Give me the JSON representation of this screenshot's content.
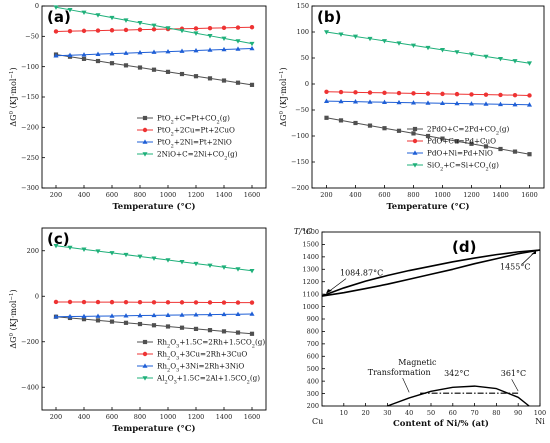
{
  "chart_data": [
    {
      "panel": "(a)",
      "type": "line",
      "xlabel": "Temperature (°C)",
      "ylabel": "ΔG⁰ (KJ·mol⁻¹)",
      "xlim": [
        100,
        1700
      ],
      "ylim": [
        -300,
        0
      ],
      "xticks": [
        200,
        400,
        600,
        800,
        1000,
        1200,
        1400,
        1600
      ],
      "yticks": [
        0,
        -50,
        -100,
        -150,
        -200,
        -250,
        -300
      ],
      "legend_position": "bottom-right",
      "x": [
        200,
        300,
        400,
        500,
        600,
        700,
        800,
        900,
        1000,
        1100,
        1200,
        1300,
        1400,
        1500,
        1600
      ],
      "series": [
        {
          "name": "PtO2+C=Pt+CO2(g)",
          "label_parts": [
            [
              "PtO",
              "n"
            ],
            [
              "2",
              "sub"
            ],
            [
              "+C=Pt+CO",
              "n"
            ],
            [
              "2",
              "sub"
            ],
            [
              "(g)",
              "n"
            ]
          ],
          "color": "#505050",
          "marker": "square",
          "start": -80,
          "end": -130
        },
        {
          "name": "PtO2+2Cu=Pt+2CuO",
          "label_parts": [
            [
              "PtO",
              "n"
            ],
            [
              "2",
              "sub"
            ],
            [
              "+2Cu=Pt+2CuO",
              "n"
            ]
          ],
          "color": "#ee3333",
          "marker": "circle",
          "start": -42,
          "end": -35
        },
        {
          "name": "PtO2+2Ni=Pt+2NiO",
          "label_parts": [
            [
              "PtO",
              "n"
            ],
            [
              "2",
              "sub"
            ],
            [
              "+2Ni=Pt+2NiO",
              "n"
            ]
          ],
          "color": "#1f5fd6",
          "marker": "triangle-up",
          "start": -82,
          "end": -70
        },
        {
          "name": "2NiO+C=2Ni+CO2(g)",
          "label_parts": [
            [
              "2NiO+C=2Ni+CO",
              "n"
            ],
            [
              "2",
              "sub"
            ],
            [
              "(g)",
              "n"
            ]
          ],
          "color": "#1fb07a",
          "marker": "triangle-down",
          "start": -2,
          "end": -62
        }
      ]
    },
    {
      "panel": "(b)",
      "type": "line",
      "xlabel": "Temperature (°C)",
      "ylabel": "ΔG⁰ (KJ·mol⁻¹)",
      "xlim": [
        100,
        1700
      ],
      "ylim": [
        -200,
        150
      ],
      "xticks": [
        200,
        400,
        600,
        800,
        1000,
        1200,
        1400,
        1600
      ],
      "yticks": [
        150,
        100,
        50,
        0,
        -50,
        -100,
        -150,
        -200
      ],
      "legend_position": "bottom-right",
      "x": [
        200,
        300,
        400,
        500,
        600,
        700,
        800,
        900,
        1000,
        1100,
        1200,
        1300,
        1400,
        1500,
        1600
      ],
      "series": [
        {
          "name": "2PdO+C=2Pd+CO2(g)",
          "label_parts": [
            [
              "2PdO+C=2Pd+CO",
              "n"
            ],
            [
              "2",
              "sub"
            ],
            [
              "(g)",
              "n"
            ]
          ],
          "color": "#505050",
          "marker": "square",
          "start": -65,
          "end": -135
        },
        {
          "name": "PdO+Cu=Pd+CuO",
          "label_parts": [
            [
              "PdO+Cu=Pd+CuO",
              "n"
            ]
          ],
          "color": "#ee3333",
          "marker": "circle",
          "start": -15,
          "end": -22
        },
        {
          "name": "PdO+Ni=Pd+NiO",
          "label_parts": [
            [
              "PdO+Ni=Pd+NiO",
              "n"
            ]
          ],
          "color": "#1f5fd6",
          "marker": "triangle-up",
          "start": -33,
          "end": -40
        },
        {
          "name": "SiO2+C=Si+CO2(g)",
          "label_parts": [
            [
              "SiO",
              "n"
            ],
            [
              "2",
              "sub"
            ],
            [
              "+C=Si+CO",
              "n"
            ],
            [
              "2",
              "sub"
            ],
            [
              "(g)",
              "n"
            ]
          ],
          "color": "#1fb07a",
          "marker": "triangle-down",
          "start": 100,
          "end": 40
        }
      ]
    },
    {
      "panel": "(c)",
      "type": "line",
      "xlabel": "Temperature (°C)",
      "ylabel": "ΔG⁰ (KJ·mol⁻¹)",
      "xlim": [
        100,
        1700
      ],
      "ylim": [
        -500,
        300
      ],
      "xticks": [
        200,
        400,
        600,
        800,
        1000,
        1200,
        1400,
        1600
      ],
      "yticks": [
        200,
        0,
        -200,
        -400
      ],
      "legend_position": "bottom-right",
      "x": [
        200,
        300,
        400,
        500,
        600,
        700,
        800,
        900,
        1000,
        1100,
        1200,
        1300,
        1400,
        1500,
        1600
      ],
      "series": [
        {
          "name": "Rh2O3+1.5C=2Rh+1.5CO2(g)",
          "label_parts": [
            [
              "Rh",
              "n"
            ],
            [
              "2",
              "sub"
            ],
            [
              "O",
              "n"
            ],
            [
              "3",
              "sub"
            ],
            [
              "+1.5C=2Rh+1.5CO",
              "n"
            ],
            [
              "2",
              "sub"
            ],
            [
              "(g)",
              "n"
            ]
          ],
          "color": "#505050",
          "marker": "square",
          "start": -90,
          "end": -165
        },
        {
          "name": "Rh2O3+3Cu=2Rh+3CuO",
          "label_parts": [
            [
              "Rh",
              "n"
            ],
            [
              "2",
              "sub"
            ],
            [
              "O",
              "n"
            ],
            [
              "3",
              "sub"
            ],
            [
              "+3Cu=2Rh+3CuO",
              "n"
            ]
          ],
          "color": "#ee3333",
          "marker": "circle",
          "start": -25,
          "end": -28
        },
        {
          "name": "Rh2O3+3Ni=2Rh+3NiO",
          "label_parts": [
            [
              "Rh",
              "n"
            ],
            [
              "2",
              "sub"
            ],
            [
              "O",
              "n"
            ],
            [
              "3",
              "sub"
            ],
            [
              "+3Ni=2Rh+3NiO",
              "n"
            ]
          ],
          "color": "#1f5fd6",
          "marker": "triangle-up",
          "start": -90,
          "end": -78
        },
        {
          "name": "Al2O3+1.5C=2Al+1.5CO2(g)",
          "label_parts": [
            [
              "Al",
              "n"
            ],
            [
              "2",
              "sub"
            ],
            [
              "O",
              "n"
            ],
            [
              "3",
              "sub"
            ],
            [
              "+1.5C=2Al+1.5CO",
              "n"
            ],
            [
              "2",
              "sub"
            ],
            [
              "(g)",
              "n"
            ]
          ],
          "color": "#1fb07a",
          "marker": "triangle-down",
          "start": 222,
          "end": 112
        }
      ]
    },
    {
      "panel": "(d)",
      "type": "line",
      "ylabel": "T/°C",
      "xlabel": "Content of Ni/% (at)",
      "xlim": [
        0,
        100
      ],
      "ylim": [
        200,
        1600
      ],
      "xticks": [
        10,
        20,
        30,
        40,
        50,
        60,
        70,
        80,
        90,
        100
      ],
      "yticks": [
        200,
        300,
        400,
        500,
        600,
        700,
        800,
        900,
        1000,
        1100,
        1200,
        1300,
        1400,
        1500,
        1600
      ],
      "x_end_labels": {
        "left": "Cu",
        "right": "Ni"
      },
      "series": [
        {
          "name": "liquidus",
          "x": [
            0,
            10,
            20,
            30,
            40,
            50,
            60,
            70,
            80,
            90,
            100
          ],
          "y": [
            1084.87,
            1150,
            1205,
            1250,
            1290,
            1325,
            1360,
            1390,
            1418,
            1440,
            1455
          ]
        },
        {
          "name": "solidus",
          "x": [
            0,
            10,
            20,
            30,
            40,
            50,
            60,
            70,
            80,
            90,
            100
          ],
          "y": [
            1084.87,
            1112,
            1145,
            1180,
            1220,
            1260,
            1300,
            1345,
            1385,
            1425,
            1455
          ]
        },
        {
          "name": "miscibility gap",
          "x": [
            30,
            40,
            50,
            60,
            70,
            80,
            90,
            95
          ],
          "y": [
            200,
            265,
            318,
            350,
            360,
            340,
            270,
            200
          ]
        },
        {
          "name": "magnetic transformation",
          "style": "dash-dot",
          "x": [
            45,
            90
          ],
          "y": [
            303,
            303
          ]
        }
      ],
      "annotations": [
        {
          "text": "1084.87°C"
        },
        {
          "text": "1455°C"
        },
        {
          "text": "Magnetic"
        },
        {
          "text": "Transformation"
        },
        {
          "text": "342°C"
        },
        {
          "text": "361°C"
        }
      ]
    }
  ]
}
